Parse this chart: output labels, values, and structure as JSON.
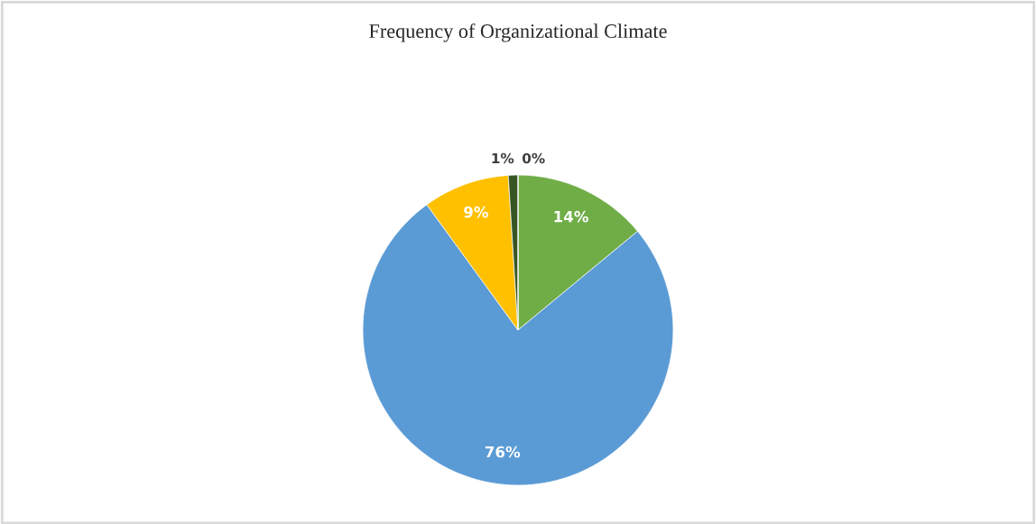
{
  "chart_data": {
    "type": "pie",
    "title": "Frequency of Organizational Climate",
    "categories": [
      null,
      null,
      null,
      null,
      null
    ],
    "values": [
      14,
      76,
      9,
      1,
      0
    ],
    "colors": [
      "#70ad47",
      "#5b9bd5",
      "#ffc000",
      "#375623",
      "#264478"
    ],
    "value_labels": [
      "14%",
      "76%",
      "9%",
      "1%",
      "0%"
    ]
  }
}
